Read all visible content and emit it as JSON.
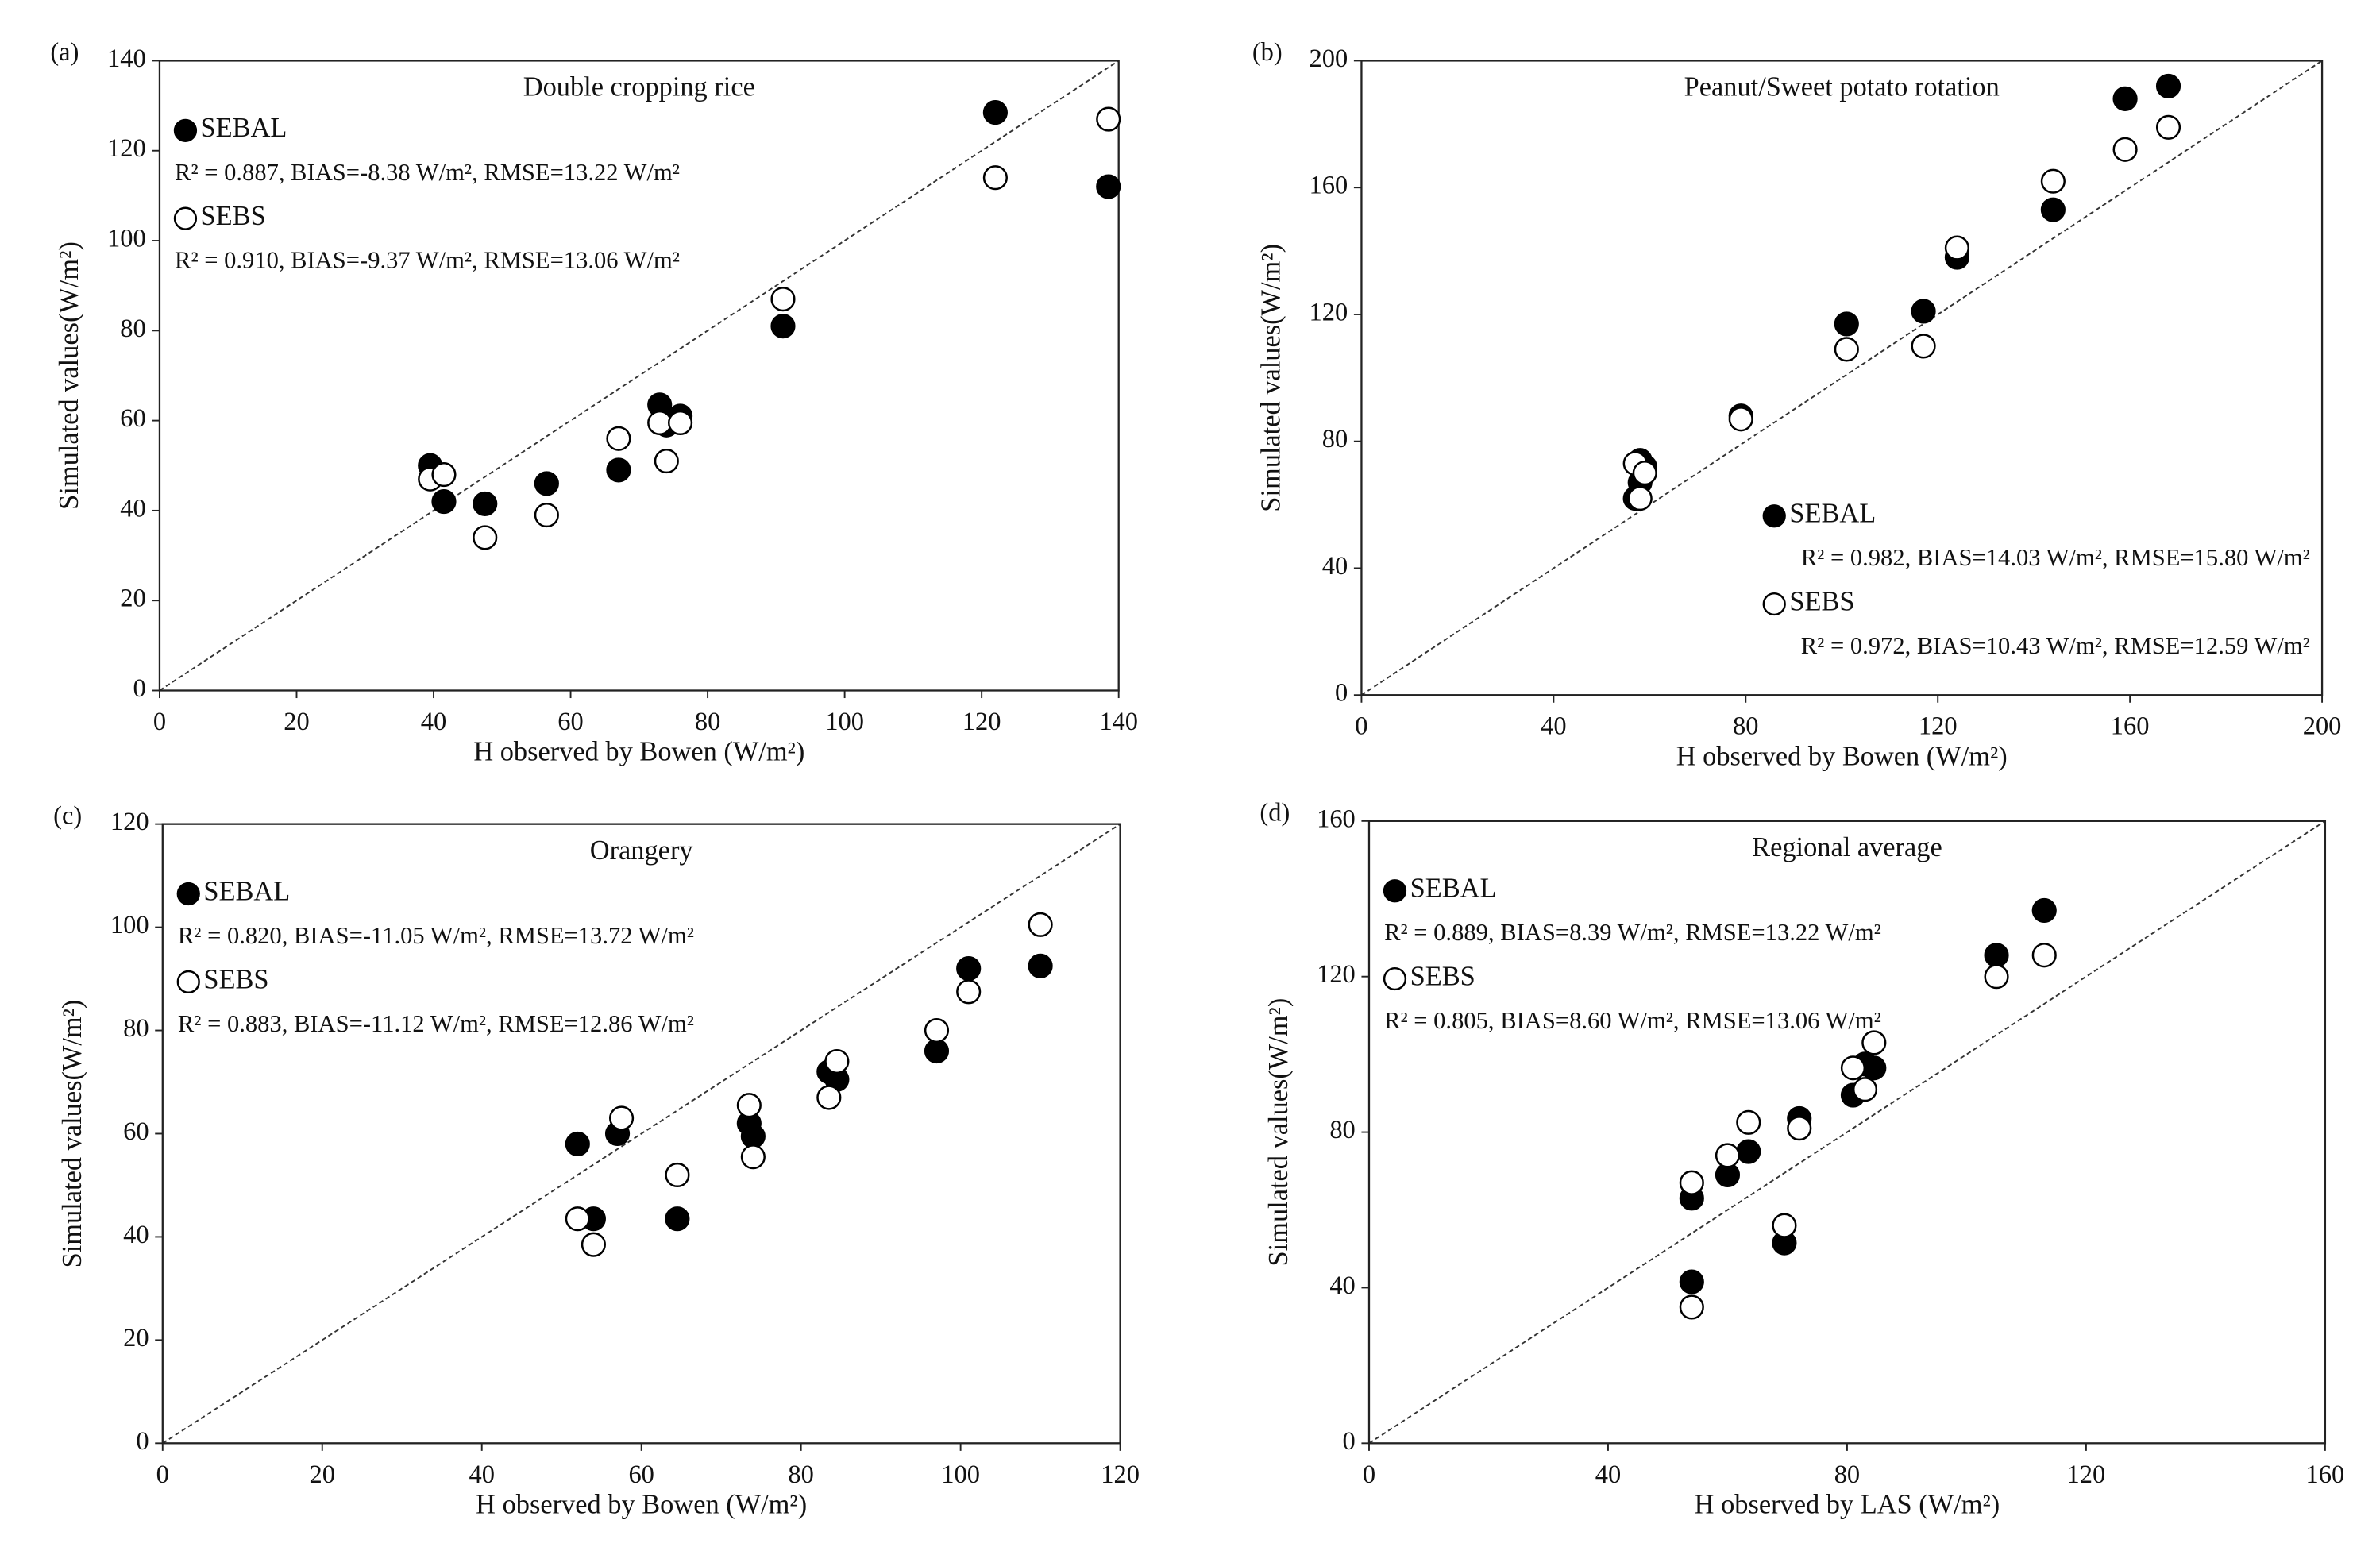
{
  "chart_data": [
    {
      "type": "scatter",
      "panel": "(a)",
      "title": "Double cropping rice",
      "xlabel": "H observed by Bowen (W/m²)",
      "ylabel": "Simulated values(W/m²)",
      "xlim": [
        0,
        140
      ],
      "ylim": [
        0,
        140
      ],
      "xticks": [
        0,
        20,
        40,
        60,
        80,
        100,
        120,
        140
      ],
      "yticks": [
        0,
        20,
        40,
        60,
        80,
        100,
        120,
        140
      ],
      "legend": "upper left",
      "series": [
        {
          "name": "SEBAL",
          "color": "#000000",
          "filled": true,
          "annotation": "R² = 0.887, BIAS=-8.38 W/m², RMSE=13.22 W/m²",
          "x": [
            39.5,
            41.5,
            47.5,
            56.5,
            67,
            73,
            74,
            76,
            91,
            122,
            138.5
          ],
          "values": [
            50,
            42,
            41.5,
            46,
            49,
            63.5,
            59,
            61,
            81,
            128.5,
            112
          ]
        },
        {
          "name": "SEBS",
          "color": "#000000",
          "filled": false,
          "annotation": "R² = 0.910, BIAS=-9.37 W/m², RMSE=13.06 W/m²",
          "x": [
            39.5,
            41.5,
            47.5,
            56.5,
            67,
            73,
            74,
            76,
            91,
            122,
            138.5
          ],
          "values": [
            47,
            48,
            34,
            39,
            56,
            59.5,
            51,
            59.5,
            87,
            114,
            127
          ]
        }
      ]
    },
    {
      "type": "scatter",
      "panel": "(b)",
      "title": "Peanut/Sweet potato rotation",
      "xlabel": "H observed by Bowen (W/m²)",
      "ylabel": "Simulated values(W/m²)",
      "xlim": [
        0,
        200
      ],
      "ylim": [
        0,
        200
      ],
      "xticks": [
        0,
        40,
        80,
        120,
        160,
        200
      ],
      "yticks": [
        0,
        40,
        80,
        120,
        160,
        200
      ],
      "legend": "lower right",
      "series": [
        {
          "name": "SEBAL",
          "color": "#000000",
          "filled": true,
          "annotation": "R² = 0.982, BIAS=14.03 W/m², RMSE=15.80 W/m²",
          "x": [
            57,
            58,
            58,
            59,
            79,
            101,
            117,
            124,
            144,
            159,
            168
          ],
          "values": [
            62,
            67,
            74,
            72,
            88,
            117,
            121,
            138,
            153,
            188,
            192
          ]
        },
        {
          "name": "SEBS",
          "color": "#000000",
          "filled": false,
          "annotation": "R² = 0.972, BIAS=10.43 W/m², RMSE=12.59 W/m²",
          "x": [
            57,
            58,
            59,
            79,
            101,
            117,
            124,
            144,
            159,
            168
          ],
          "values": [
            73,
            62,
            70,
            87,
            109,
            110,
            141,
            162,
            172,
            179
          ]
        }
      ]
    },
    {
      "type": "scatter",
      "panel": "(c)",
      "title": "Orangery",
      "xlabel": "H observed by Bowen (W/m²)",
      "ylabel": "Simulated values(W/m²)",
      "xlim": [
        0,
        120
      ],
      "ylim": [
        0,
        120
      ],
      "xticks": [
        0,
        20,
        40,
        60,
        80,
        100,
        120
      ],
      "yticks": [
        0,
        20,
        40,
        60,
        80,
        100,
        120
      ],
      "legend": "upper left",
      "series": [
        {
          "name": "SEBAL",
          "color": "#000000",
          "filled": true,
          "annotation": "R² = 0.820, BIAS=-11.05 W/m², RMSE=13.72 W/m²",
          "x": [
            52,
            54,
            57,
            64.5,
            73.5,
            74,
            83.5,
            84.5,
            97,
            101,
            110
          ],
          "values": [
            58,
            43.5,
            60,
            43.5,
            62,
            59.5,
            72,
            70.5,
            76,
            92,
            92.5
          ]
        },
        {
          "name": "SEBS",
          "color": "#000000",
          "filled": false,
          "annotation": "R² = 0.883, BIAS=-11.12 W/m², RMSE=12.86 W/m²",
          "x": [
            52,
            54,
            57.5,
            64.5,
            73.5,
            74,
            83.5,
            84.5,
            97,
            101,
            110
          ],
          "values": [
            43.5,
            38.5,
            63,
            52,
            65.5,
            55.5,
            67,
            74,
            80,
            87.5,
            100.5
          ]
        }
      ]
    },
    {
      "type": "scatter",
      "panel": "(d)",
      "title": "Regional average",
      "xlabel": "H observed by LAS (W/m²)",
      "ylabel": "Simulated values(W/m²)",
      "xlim": [
        0,
        160
      ],
      "ylim": [
        0,
        160
      ],
      "xticks": [
        0,
        40,
        80,
        120,
        160
      ],
      "yticks": [
        0,
        40,
        80,
        120,
        160
      ],
      "legend": "upper left",
      "series": [
        {
          "name": "SEBAL",
          "color": "#000000",
          "filled": true,
          "annotation": "R² = 0.889, BIAS=8.39 W/m², RMSE=13.22 W/m²",
          "x": [
            54,
            54,
            60,
            63.5,
            69.5,
            72,
            81,
            83,
            84.5,
            105,
            113
          ],
          "values": [
            41.5,
            63,
            69,
            75,
            51.5,
            83.5,
            89.5,
            97.5,
            96.5,
            125.5,
            137
          ]
        },
        {
          "name": "SEBS",
          "color": "#000000",
          "filled": false,
          "annotation": "R² = 0.805, BIAS=8.60 W/m², RMSE=13.06 W/m²",
          "x": [
            54,
            54,
            60,
            63.5,
            69.5,
            72,
            81,
            83,
            84.5,
            105,
            113
          ],
          "values": [
            35,
            67,
            74,
            82.5,
            56,
            81,
            96.5,
            91,
            103,
            120,
            125.5
          ]
        }
      ]
    }
  ]
}
